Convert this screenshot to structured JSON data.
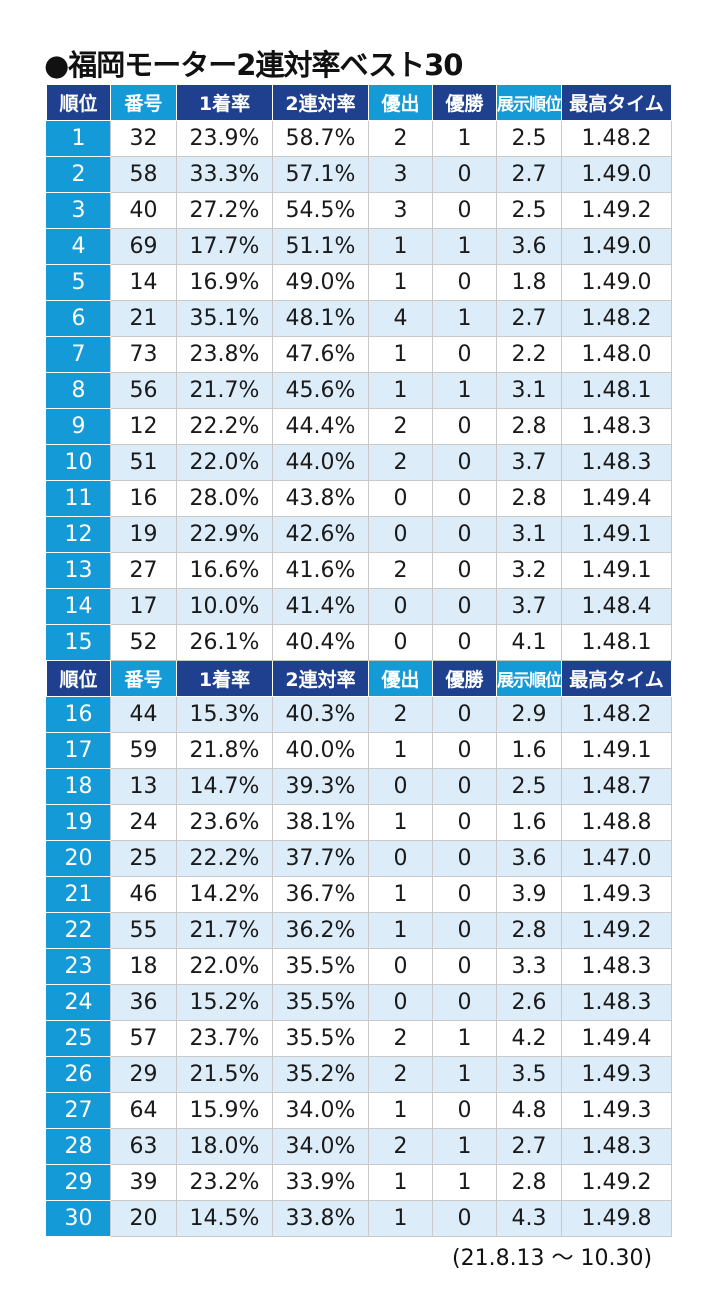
{
  "title": "●福岡モーター2連対率ベスト30",
  "headers": [
    "順位",
    "番号",
    "1着率",
    "2連対率",
    "優出",
    "優勝",
    "展示順位",
    "最高タイム"
  ],
  "header_colors": [
    "navy",
    "blue",
    "navy",
    "navy",
    "blue",
    "navy",
    "blue",
    "navy"
  ],
  "rows": [
    [
      "1",
      "32",
      "23.9%",
      "58.7%",
      "2",
      "1",
      "2.5",
      "1.48.2"
    ],
    [
      "2",
      "58",
      "33.3%",
      "57.1%",
      "3",
      "0",
      "2.7",
      "1.49.0"
    ],
    [
      "3",
      "40",
      "27.2%",
      "54.5%",
      "3",
      "0",
      "2.5",
      "1.49.2"
    ],
    [
      "4",
      "69",
      "17.7%",
      "51.1%",
      "1",
      "1",
      "3.6",
      "1.49.0"
    ],
    [
      "5",
      "14",
      "16.9%",
      "49.0%",
      "1",
      "0",
      "1.8",
      "1.49.0"
    ],
    [
      "6",
      "21",
      "35.1%",
      "48.1%",
      "4",
      "1",
      "2.7",
      "1.48.2"
    ],
    [
      "7",
      "73",
      "23.8%",
      "47.6%",
      "1",
      "0",
      "2.2",
      "1.48.0"
    ],
    [
      "8",
      "56",
      "21.7%",
      "45.6%",
      "1",
      "1",
      "3.1",
      "1.48.1"
    ],
    [
      "9",
      "12",
      "22.2%",
      "44.4%",
      "2",
      "0",
      "2.8",
      "1.48.3"
    ],
    [
      "10",
      "51",
      "22.0%",
      "44.0%",
      "2",
      "0",
      "3.7",
      "1.48.3"
    ],
    [
      "11",
      "16",
      "28.0%",
      "43.8%",
      "0",
      "0",
      "2.8",
      "1.49.4"
    ],
    [
      "12",
      "19",
      "22.9%",
      "42.6%",
      "0",
      "0",
      "3.1",
      "1.49.1"
    ],
    [
      "13",
      "27",
      "16.6%",
      "41.6%",
      "2",
      "0",
      "3.2",
      "1.49.1"
    ],
    [
      "14",
      "17",
      "10.0%",
      "41.4%",
      "0",
      "0",
      "3.7",
      "1.48.4"
    ],
    [
      "15",
      "52",
      "26.1%",
      "40.4%",
      "0",
      "0",
      "4.1",
      "1.48.1"
    ],
    [
      "16",
      "44",
      "15.3%",
      "40.3%",
      "2",
      "0",
      "2.9",
      "1.48.2"
    ],
    [
      "17",
      "59",
      "21.8%",
      "40.0%",
      "1",
      "0",
      "1.6",
      "1.49.1"
    ],
    [
      "18",
      "13",
      "14.7%",
      "39.3%",
      "0",
      "0",
      "2.5",
      "1.48.7"
    ],
    [
      "19",
      "24",
      "23.6%",
      "38.1%",
      "1",
      "0",
      "1.6",
      "1.48.8"
    ],
    [
      "20",
      "25",
      "22.2%",
      "37.7%",
      "0",
      "0",
      "3.6",
      "1.47.0"
    ],
    [
      "21",
      "46",
      "14.2%",
      "36.7%",
      "1",
      "0",
      "3.9",
      "1.49.3"
    ],
    [
      "22",
      "55",
      "21.7%",
      "36.2%",
      "1",
      "0",
      "2.8",
      "1.49.2"
    ],
    [
      "23",
      "18",
      "22.0%",
      "35.5%",
      "0",
      "0",
      "3.3",
      "1.48.3"
    ],
    [
      "24",
      "36",
      "15.2%",
      "35.5%",
      "0",
      "0",
      "2.6",
      "1.48.3"
    ],
    [
      "25",
      "57",
      "23.7%",
      "35.5%",
      "2",
      "1",
      "4.2",
      "1.49.4"
    ],
    [
      "26",
      "29",
      "21.5%",
      "35.2%",
      "2",
      "1",
      "3.5",
      "1.49.3"
    ],
    [
      "27",
      "64",
      "15.9%",
      "34.0%",
      "1",
      "0",
      "4.8",
      "1.49.3"
    ],
    [
      "28",
      "63",
      "18.0%",
      "34.0%",
      "2",
      "1",
      "2.7",
      "1.48.3"
    ],
    [
      "29",
      "39",
      "23.2%",
      "33.9%",
      "1",
      "1",
      "2.8",
      "1.49.2"
    ],
    [
      "30",
      "20",
      "14.5%",
      "33.8%",
      "1",
      "0",
      "4.3",
      "1.49.8"
    ]
  ],
  "period_note": "(21.8.13 ～ 10.30)",
  "colors": {
    "navy": "#1f3f8f",
    "blue": "#159ad8",
    "alt_row": "#dcecf8"
  }
}
